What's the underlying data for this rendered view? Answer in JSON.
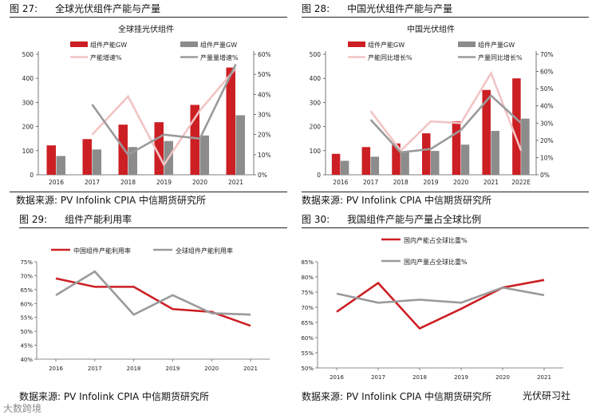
{
  "figures": [
    {
      "num": "图 27:",
      "title": "全球光伏组件产能与产量",
      "source": "数据来源: PV Infolink CPIA 中信期货研究所"
    },
    {
      "num": "图 28:",
      "title": "中国光伏组件产能与产量",
      "source": "数据来源: PV Infolink CPIA 中信期货研究所"
    },
    {
      "num": "图 29:",
      "title": "组件产能利用率",
      "source": "数据来源: PV Infolink CPIA 中信期货研究所"
    },
    {
      "num": "图 30:",
      "title": "我国组件产能与产量占全球比例",
      "source": "数据来源: PV Infolink CPIA 中信期货研究所"
    }
  ],
  "watermark": "大数跨境",
  "brand": "光伏研习社",
  "colors": {
    "red": "#cc1f24",
    "gray": "#8c8c8c",
    "pink": "#f2c4c4",
    "gray_line": "#9a9a9a"
  },
  "chart_data": [
    {
      "type": "bar",
      "title": "全球挂光伏组件",
      "categories": [
        "2016",
        "2017",
        "2018",
        "2019",
        "2020",
        "2021"
      ],
      "series": [
        {
          "name": "组件产能GW",
          "kind": "bar",
          "axis": "left",
          "values": [
            122,
            148,
            208,
            218,
            290,
            445
          ]
        },
        {
          "name": "组件产量GW",
          "kind": "bar",
          "axis": "left",
          "values": [
            78,
            105,
            115,
            140,
            163,
            247
          ]
        },
        {
          "name": "产能增速%",
          "kind": "line",
          "axis": "right",
          "values": [
            null,
            20,
            39,
            5,
            32,
            53
          ]
        },
        {
          "name": "产量量增速%",
          "kind": "line",
          "axis": "right",
          "values": [
            null,
            35,
            10,
            20,
            18,
            55
          ]
        }
      ],
      "ylim": [
        0,
        500
      ],
      "yticks": [
        0,
        100,
        200,
        300,
        400,
        500
      ],
      "y2lim": [
        0,
        60
      ],
      "y2ticks": [
        "0%",
        "10%",
        "20%",
        "30%",
        "40%",
        "50%",
        "60%"
      ]
    },
    {
      "type": "bar",
      "title": "中国光伏组件",
      "categories": [
        "2016",
        "2017",
        "2018",
        "2019",
        "2020",
        "2021",
        "2022E"
      ],
      "series": [
        {
          "name": "组件产能GW",
          "kind": "bar",
          "axis": "left",
          "values": [
            87,
            115,
            130,
            172,
            222,
            352,
            400
          ]
        },
        {
          "name": "组件产量GW",
          "kind": "bar",
          "axis": "left",
          "values": [
            58,
            75,
            98,
            99,
            125,
            182,
            233
          ]
        },
        {
          "name": "产能同比增长%",
          "kind": "line",
          "axis": "right",
          "values": [
            null,
            37,
            14,
            31,
            30,
            59,
            14
          ]
        },
        {
          "name": "产量同比增长%",
          "kind": "line",
          "axis": "right",
          "values": [
            null,
            32,
            13,
            15,
            26,
            46,
            30
          ]
        }
      ],
      "ylim": [
        0,
        500
      ],
      "yticks": [
        0,
        100,
        200,
        300,
        400,
        500
      ],
      "y2lim": [
        0,
        70
      ],
      "y2ticks": [
        "0%",
        "10%",
        "20%",
        "30%",
        "40%",
        "50%",
        "60%",
        "70%"
      ]
    },
    {
      "type": "line",
      "title": "",
      "categories": [
        "2016",
        "2017",
        "2018",
        "2019",
        "2020",
        "2021"
      ],
      "series": [
        {
          "name": "中国组件产能利用率",
          "values": [
            69,
            66,
            66,
            58,
            57,
            52
          ]
        },
        {
          "name": "全球组件产能利用率",
          "values": [
            63,
            71.5,
            56,
            63,
            56.5,
            56
          ]
        }
      ],
      "ylim": [
        40,
        75
      ],
      "yticks": [
        "40%",
        "45%",
        "50%",
        "55%",
        "60%",
        "65%",
        "70%",
        "75%"
      ]
    },
    {
      "type": "line",
      "title": "",
      "categories": [
        "2016",
        "2017",
        "2018",
        "2019",
        "2020",
        "2021"
      ],
      "series": [
        {
          "name": "国内产能占全球比重%",
          "values": [
            68.5,
            78,
            63,
            69.5,
            76.5,
            79
          ]
        },
        {
          "name": "国内产量占全球比重%",
          "values": [
            74.5,
            71.5,
            72.5,
            71.5,
            76.5,
            74
          ]
        }
      ],
      "ylim": [
        50,
        85
      ],
      "yticks": [
        "50%",
        "55%",
        "60%",
        "65%",
        "70%",
        "75%",
        "80%",
        "85%"
      ]
    }
  ]
}
